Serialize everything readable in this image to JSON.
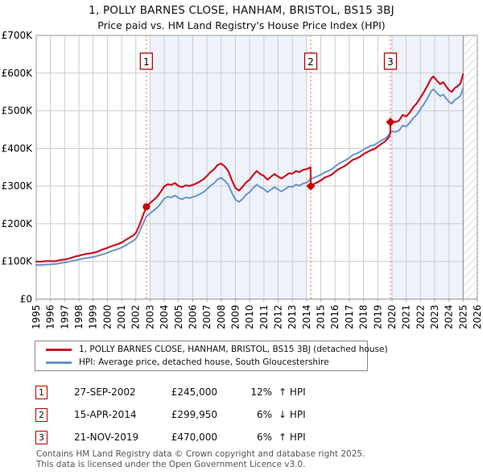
{
  "page": {
    "title": "1, POLLY BARNES CLOSE, HANHAM, BRISTOL, BS15 3BJ",
    "subtitle": "Price paid vs. HM Land Registry's House Price Index (HPI)",
    "footer_line1": "Contains HM Land Registry data © Crown copyright and database right 2025.",
    "footer_line2": "This data is licensed under the Open Government Licence v3.0."
  },
  "legend": {
    "series1": "1, POLLY BARNES CLOSE, HANHAM, BRISTOL, BS15 3BJ (detached house)",
    "series2": "HPI: Average price, detached house, South Gloucestershire"
  },
  "transactions": [
    {
      "n": "1",
      "date": "27-SEP-2002",
      "price": "£245,000",
      "pct": "12%",
      "delta": "↑ HPI"
    },
    {
      "n": "2",
      "date": "15-APR-2014",
      "price": "£299,950",
      "pct": "6%",
      "delta": "↓ HPI"
    },
    {
      "n": "3",
      "date": "21-NOV-2019",
      "price": "£470,000",
      "pct": "6%",
      "delta": "↑ HPI"
    }
  ],
  "colors": {
    "price_line": "#cc1122",
    "hpi_line": "#6795c9",
    "sale_dotted_line": "#f87878",
    "marker": "#cc0000",
    "number_box_border": "#bb0000",
    "ownership_band": "#eef2fa",
    "gridline": "#cccccc",
    "plot_border": "#999999",
    "hatch_line": "#bbbbbb",
    "footer_text": "#555555"
  },
  "chart_data": {
    "type": "line",
    "title": "1, POLLY BARNES CLOSE, HANHAM, BRISTOL, BS15 3BJ",
    "subtitle": "Price paid vs. HM Land Registry's House Price Index (HPI)",
    "grid": true,
    "legend_position": "bottom",
    "values_unit": "GBP_thousands",
    "x_axis": {
      "min": 1995,
      "max": 2026,
      "ticks": [
        1995,
        1996,
        1997,
        1998,
        1999,
        2000,
        2001,
        2002,
        2003,
        2004,
        2005,
        2006,
        2007,
        2008,
        2009,
        2010,
        2011,
        2012,
        2013,
        2014,
        2015,
        2016,
        2017,
        2018,
        2019,
        2020,
        2021,
        2022,
        2023,
        2024,
        2025,
        2026
      ]
    },
    "y_axis": {
      "min": 0,
      "max_k": 700,
      "tick_step_k": 100,
      "labels": [
        "£0",
        "£100K",
        "£200K",
        "£300K",
        "£400K",
        "£500K",
        "£600K",
        "£700K"
      ]
    },
    "ownership_bands": [
      [
        2003,
        2014
      ],
      [
        2020,
        2025
      ]
    ],
    "hatch_future": [
      2025,
      2026
    ],
    "sales": [
      {
        "n": "1",
        "year": 2002.74,
        "value_k": 245,
        "marker": "circle"
      },
      {
        "n": "2",
        "year": 2014.29,
        "value_k": 299.95,
        "marker": "diamond"
      },
      {
        "n": "3",
        "year": 2019.89,
        "value_k": 470,
        "marker": "diamond"
      }
    ],
    "series": [
      {
        "name": "hpi",
        "color": "#6795c9",
        "width": 2,
        "points": [
          [
            1995,
            91
          ],
          [
            1995.25,
            90
          ],
          [
            1995.5,
            91
          ],
          [
            1995.75,
            92
          ],
          [
            1996,
            92
          ],
          [
            1996.25,
            93
          ],
          [
            1996.5,
            94
          ],
          [
            1996.75,
            96
          ],
          [
            1997,
            97
          ],
          [
            1997.25,
            99
          ],
          [
            1997.5,
            101
          ],
          [
            1997.75,
            103
          ],
          [
            1998,
            105
          ],
          [
            1998.25,
            107
          ],
          [
            1998.5,
            109
          ],
          [
            1998.75,
            110
          ],
          [
            1999,
            112
          ],
          [
            1999.25,
            114
          ],
          [
            1999.5,
            117
          ],
          [
            1999.75,
            120
          ],
          [
            2000,
            123
          ],
          [
            2000.25,
            127
          ],
          [
            2000.5,
            130
          ],
          [
            2000.75,
            133
          ],
          [
            2001,
            137
          ],
          [
            2001.25,
            142
          ],
          [
            2001.5,
            148
          ],
          [
            2001.75,
            153
          ],
          [
            2002,
            160
          ],
          [
            2002.25,
            178
          ],
          [
            2002.5,
            200
          ],
          [
            2002.74,
            219
          ],
          [
            2003,
            228
          ],
          [
            2003.25,
            235
          ],
          [
            2003.5,
            243
          ],
          [
            2003.75,
            254
          ],
          [
            2004,
            267
          ],
          [
            2004.25,
            272
          ],
          [
            2004.5,
            270
          ],
          [
            2004.75,
            275
          ],
          [
            2005,
            268
          ],
          [
            2005.25,
            265
          ],
          [
            2005.5,
            270
          ],
          [
            2005.75,
            268
          ],
          [
            2006,
            271
          ],
          [
            2006.25,
            274
          ],
          [
            2006.5,
            279
          ],
          [
            2006.75,
            284
          ],
          [
            2007,
            292
          ],
          [
            2007.25,
            301
          ],
          [
            2007.5,
            308
          ],
          [
            2007.75,
            318
          ],
          [
            2008,
            322
          ],
          [
            2008.25,
            314
          ],
          [
            2008.5,
            304
          ],
          [
            2008.75,
            282
          ],
          [
            2009,
            264
          ],
          [
            2009.25,
            258
          ],
          [
            2009.5,
            266
          ],
          [
            2009.75,
            277
          ],
          [
            2010,
            284
          ],
          [
            2010.25,
            295
          ],
          [
            2010.5,
            304
          ],
          [
            2010.75,
            297
          ],
          [
            2011,
            292
          ],
          [
            2011.25,
            284
          ],
          [
            2011.5,
            291
          ],
          [
            2011.75,
            297
          ],
          [
            2012,
            291
          ],
          [
            2012.25,
            286
          ],
          [
            2012.5,
            292
          ],
          [
            2012.75,
            299
          ],
          [
            2013,
            298
          ],
          [
            2013.25,
            304
          ],
          [
            2013.5,
            301
          ],
          [
            2013.75,
            307
          ],
          [
            2014,
            309
          ],
          [
            2014.29,
            319
          ],
          [
            2014.5,
            322
          ],
          [
            2014.75,
            326
          ],
          [
            2015,
            330
          ],
          [
            2015.25,
            336
          ],
          [
            2015.5,
            340
          ],
          [
            2015.75,
            344
          ],
          [
            2016,
            352
          ],
          [
            2016.25,
            359
          ],
          [
            2016.5,
            364
          ],
          [
            2016.75,
            369
          ],
          [
            2017,
            375
          ],
          [
            2017.25,
            383
          ],
          [
            2017.5,
            386
          ],
          [
            2017.75,
            391
          ],
          [
            2018,
            397
          ],
          [
            2018.25,
            402
          ],
          [
            2018.5,
            407
          ],
          [
            2018.75,
            409
          ],
          [
            2019,
            415
          ],
          [
            2019.25,
            421
          ],
          [
            2019.5,
            426
          ],
          [
            2019.75,
            434
          ],
          [
            2019.89,
            443
          ],
          [
            2020,
            445
          ],
          [
            2020.25,
            444
          ],
          [
            2020.5,
            448
          ],
          [
            2020.75,
            461
          ],
          [
            2021,
            458
          ],
          [
            2021.25,
            468
          ],
          [
            2021.5,
            481
          ],
          [
            2021.75,
            490
          ],
          [
            2022,
            504
          ],
          [
            2022.25,
            518
          ],
          [
            2022.5,
            534
          ],
          [
            2022.75,
            551
          ],
          [
            2022.9,
            557
          ],
          [
            2023.1,
            550
          ],
          [
            2023.2,
            545
          ],
          [
            2023.4,
            539
          ],
          [
            2023.6,
            543
          ],
          [
            2023.8,
            533
          ],
          [
            2024,
            524
          ],
          [
            2024.2,
            519
          ],
          [
            2024.4,
            528
          ],
          [
            2024.6,
            533
          ],
          [
            2024.8,
            539
          ],
          [
            2025,
            560
          ]
        ]
      },
      {
        "name": "price_paid_indexed",
        "color": "#cc1122",
        "width": 2.2,
        "points": [
          [
            1995,
            100
          ],
          [
            1995.25,
            99
          ],
          [
            1995.5,
            100
          ],
          [
            1995.75,
            101
          ],
          [
            1996,
            101
          ],
          [
            1996.25,
            100
          ],
          [
            1996.5,
            102
          ],
          [
            1996.75,
            104
          ],
          [
            1997,
            105
          ],
          [
            1997.25,
            107
          ],
          [
            1997.5,
            110
          ],
          [
            1997.75,
            113
          ],
          [
            1998,
            115
          ],
          [
            1998.25,
            118
          ],
          [
            1998.5,
            120
          ],
          [
            1998.75,
            121
          ],
          [
            1999,
            123
          ],
          [
            1999.25,
            125
          ],
          [
            1999.5,
            129
          ],
          [
            1999.75,
            133
          ],
          [
            2000,
            136
          ],
          [
            2000.25,
            140
          ],
          [
            2000.5,
            143
          ],
          [
            2000.75,
            146
          ],
          [
            2001,
            150
          ],
          [
            2001.25,
            156
          ],
          [
            2001.5,
            162
          ],
          [
            2001.75,
            167
          ],
          [
            2002,
            175
          ],
          [
            2002.25,
            196
          ],
          [
            2002.5,
            222
          ],
          [
            2002.74,
            245
          ],
          [
            2003,
            255
          ],
          [
            2003.25,
            263
          ],
          [
            2003.5,
            272
          ],
          [
            2003.75,
            285
          ],
          [
            2004,
            299
          ],
          [
            2004.25,
            305
          ],
          [
            2004.5,
            303
          ],
          [
            2004.75,
            308
          ],
          [
            2005,
            300
          ],
          [
            2005.25,
            297
          ],
          [
            2005.5,
            302
          ],
          [
            2005.75,
            300
          ],
          [
            2006,
            303
          ],
          [
            2006.25,
            307
          ],
          [
            2006.5,
            312
          ],
          [
            2006.75,
            318
          ],
          [
            2007,
            327
          ],
          [
            2007.25,
            337
          ],
          [
            2007.5,
            345
          ],
          [
            2007.75,
            356
          ],
          [
            2008,
            360
          ],
          [
            2008.25,
            352
          ],
          [
            2008.5,
            340
          ],
          [
            2008.75,
            315
          ],
          [
            2009,
            295
          ],
          [
            2009.25,
            288
          ],
          [
            2009.5,
            298
          ],
          [
            2009.75,
            310
          ],
          [
            2010,
            317
          ],
          [
            2010.25,
            330
          ],
          [
            2010.5,
            340
          ],
          [
            2010.75,
            332
          ],
          [
            2011,
            327
          ],
          [
            2011.25,
            317
          ],
          [
            2011.5,
            325
          ],
          [
            2011.75,
            332
          ],
          [
            2012,
            325
          ],
          [
            2012.25,
            320
          ],
          [
            2012.5,
            327
          ],
          [
            2012.75,
            334
          ],
          [
            2013,
            333
          ],
          [
            2013.25,
            340
          ],
          [
            2013.5,
            337
          ],
          [
            2013.75,
            343
          ],
          [
            2014,
            345
          ],
          [
            2014.28,
            350
          ],
          [
            2014.29,
            299.95
          ],
          [
            2014.5,
            305
          ],
          [
            2014.75,
            310
          ],
          [
            2015,
            315
          ],
          [
            2015.25,
            322
          ],
          [
            2015.5,
            326
          ],
          [
            2015.75,
            330
          ],
          [
            2016,
            338
          ],
          [
            2016.25,
            345
          ],
          [
            2016.5,
            350
          ],
          [
            2016.75,
            355
          ],
          [
            2017,
            362
          ],
          [
            2017.25,
            370
          ],
          [
            2017.5,
            373
          ],
          [
            2017.75,
            378
          ],
          [
            2018,
            385
          ],
          [
            2018.25,
            390
          ],
          [
            2018.5,
            395
          ],
          [
            2018.75,
            398
          ],
          [
            2019,
            405
          ],
          [
            2019.25,
            412
          ],
          [
            2019.5,
            418
          ],
          [
            2019.75,
            428
          ],
          [
            2019.88,
            440
          ],
          [
            2019.89,
            470
          ],
          [
            2020,
            472
          ],
          [
            2020.25,
            470
          ],
          [
            2020.5,
            474
          ],
          [
            2020.75,
            489
          ],
          [
            2021,
            485
          ],
          [
            2021.25,
            495
          ],
          [
            2021.5,
            510
          ],
          [
            2021.75,
            520
          ],
          [
            2022,
            535
          ],
          [
            2022.25,
            550
          ],
          [
            2022.5,
            567
          ],
          [
            2022.75,
            585
          ],
          [
            2022.9,
            591
          ],
          [
            2023.1,
            583
          ],
          [
            2023.2,
            578
          ],
          [
            2023.4,
            571
          ],
          [
            2023.6,
            576
          ],
          [
            2023.8,
            565
          ],
          [
            2024,
            555
          ],
          [
            2024.2,
            550
          ],
          [
            2024.4,
            560
          ],
          [
            2024.6,
            565
          ],
          [
            2024.8,
            572
          ],
          [
            2025,
            597
          ]
        ]
      }
    ]
  }
}
